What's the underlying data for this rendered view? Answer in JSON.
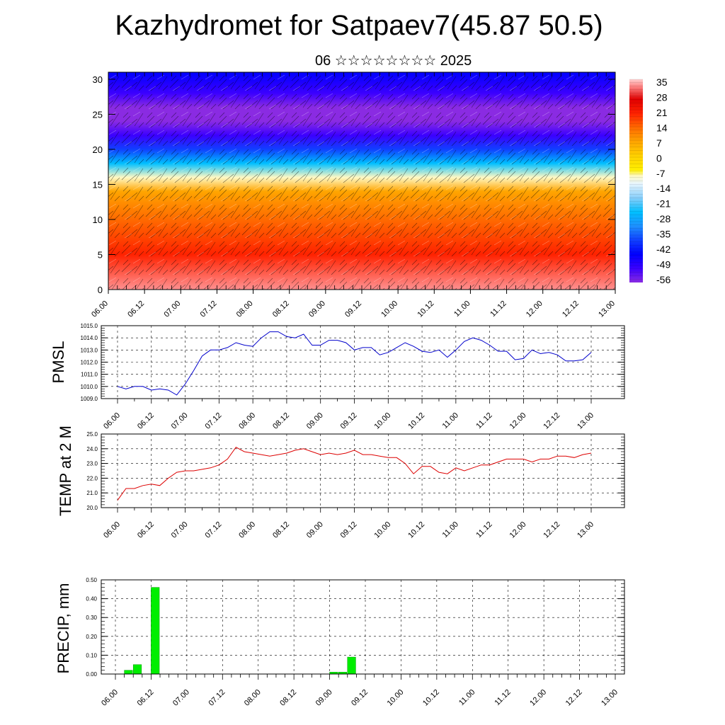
{
  "header": {
    "title": "Kazhydromet for Satpaev7(45.87 50.5)",
    "subtitle": "06 ☆☆☆☆☆☆☆☆ 2025"
  },
  "colors": {
    "pmsl_line": "#0000cc",
    "temp_line": "#dd0000",
    "precip_bar": "#00ee00"
  },
  "time_ticks": [
    "06.00",
    "06.12",
    "07.00",
    "07.12",
    "08.00",
    "08.12",
    "09.00",
    "09.12",
    "10.00",
    "10.12",
    "11.00",
    "11.12",
    "12.00",
    "12.12",
    "13.00"
  ],
  "chart_data": [
    {
      "id": "vertical",
      "type": "heatmap",
      "title": "",
      "xlabel": "",
      "ylabel": "",
      "ylim": [
        0,
        31
      ],
      "yticks": [
        "0",
        "5",
        "10",
        "15",
        "20",
        "25",
        "30"
      ],
      "colorbar": {
        "labels": [
          "35",
          "28",
          "21",
          "14",
          "7",
          "0",
          "-7",
          "-14",
          "-21",
          "-28",
          "-35",
          "-42",
          "-49",
          "-56"
        ],
        "range": [
          -63,
          38
        ]
      },
      "temperature_profile": {
        "levels": [
          0,
          5,
          10,
          14,
          16,
          18,
          20,
          22,
          24,
          26,
          28,
          31
        ],
        "values": [
          33,
          24,
          14,
          4,
          -10,
          -30,
          -44,
          -56,
          -62,
          -60,
          -56,
          -52
        ]
      }
    },
    {
      "id": "pmsl",
      "type": "line",
      "ylabel": "PMSL",
      "ylim": [
        1009.0,
        1015.0
      ],
      "yticks": [
        "1009.0",
        "1010.0",
        "1011.0",
        "1012.0",
        "1013.0",
        "1014.0",
        "1015.0"
      ],
      "series": [
        {
          "values": [
            1010.0,
            1009.8,
            1010.0,
            1010.0,
            1009.7,
            1009.8,
            1009.7,
            1009.3,
            1010.2,
            1011.3,
            1012.5,
            1013.0,
            1013.0,
            1013.2,
            1013.6,
            1013.4,
            1013.3,
            1014.0,
            1014.5,
            1014.5,
            1014.1,
            1014.0,
            1014.3,
            1013.4,
            1013.4,
            1013.8,
            1013.8,
            1013.6,
            1013.0,
            1013.2,
            1013.2,
            1012.6,
            1012.8,
            1013.2,
            1013.6,
            1013.3,
            1012.9,
            1012.8,
            1013.0,
            1012.4,
            1013.0,
            1013.7,
            1014.0,
            1013.8,
            1013.4,
            1012.9,
            1012.9,
            1012.2,
            1012.3,
            1013.0,
            1012.7,
            1012.8,
            1012.6,
            1012.1,
            1012.1,
            1012.2,
            1012.8
          ]
        }
      ]
    },
    {
      "id": "temp",
      "type": "line",
      "ylabel": "TEMP at 2 M",
      "ylim": [
        20.0,
        25.0
      ],
      "yticks": [
        "20.0",
        "21.0",
        "22.0",
        "23.0",
        "24.0",
        "25.0"
      ],
      "series": [
        {
          "values": [
            20.5,
            21.3,
            21.3,
            21.5,
            21.6,
            21.5,
            22.0,
            22.4,
            22.5,
            22.5,
            22.6,
            22.7,
            22.9,
            23.3,
            24.1,
            23.8,
            23.7,
            23.6,
            23.5,
            23.6,
            23.7,
            23.9,
            24.0,
            23.8,
            23.6,
            23.7,
            23.6,
            23.7,
            23.9,
            23.6,
            23.6,
            23.5,
            23.4,
            23.4,
            23.0,
            22.3,
            22.8,
            22.8,
            22.4,
            22.3,
            22.7,
            22.5,
            22.7,
            22.9,
            22.9,
            23.1,
            23.3,
            23.3,
            23.3,
            23.1,
            23.3,
            23.3,
            23.5,
            23.5,
            23.4,
            23.6,
            23.7
          ]
        }
      ]
    },
    {
      "id": "precip",
      "type": "bar",
      "ylabel": "PRECIP, mm",
      "ylim": [
        0,
        0.5
      ],
      "yticks": [
        "0.00",
        "0.10",
        "0.20",
        "0.30",
        "0.40",
        "0.50"
      ],
      "bars": [
        {
          "t": 3,
          "value": 0.02
        },
        {
          "t": 6,
          "value": 0.05
        },
        {
          "t": 12,
          "value": 0.46
        },
        {
          "t": 72,
          "value": 0.01
        },
        {
          "t": 75,
          "value": 0.01
        },
        {
          "t": 78,
          "value": 0.09
        }
      ]
    }
  ]
}
